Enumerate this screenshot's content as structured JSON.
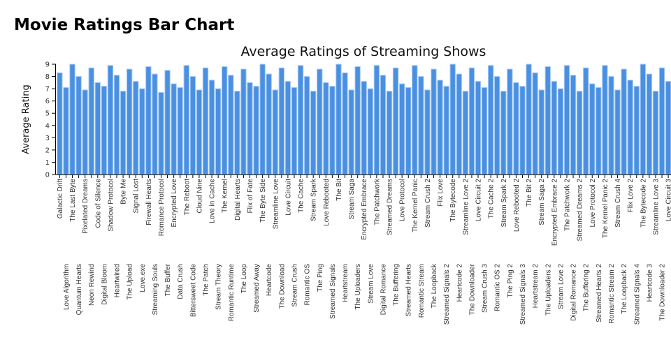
{
  "page": {
    "heading": "Movie Ratings Bar Chart"
  },
  "chart_data": {
    "type": "bar",
    "title": "Average Ratings of Streaming Shows",
    "xlabel": "",
    "ylabel": "Average Rating",
    "ylim": [
      0,
      9
    ],
    "yticks": [
      "0",
      "1",
      "2",
      "3",
      "4",
      "5",
      "6",
      "7",
      "8",
      "9"
    ],
    "grid": false,
    "bar_color": "#4a90e2",
    "categories": [
      "Galactic Drift",
      "Love Algorithm",
      "The Last Byte",
      "Quantum Hearts",
      "Pixelated Dreams",
      "Neon Rewind",
      "Code of Silence",
      "Digital Bloom",
      "Shadow Protocol",
      "Heartwired",
      "Byte Me",
      "The Upload",
      "Signal Lost",
      "Love.exe",
      "Firewall Hearts",
      "Streaming Souls",
      "Romance Protocol",
      "The Buffer",
      "Encrypted Love",
      "Data Crush",
      "The Reboot",
      "Bittersweet Code",
      "Cloud Nine",
      "The Patch",
      "Love in Cache",
      "Stream Theory",
      "The Kernel",
      "Romantic Runtime",
      "Digital Hearts",
      "The Loop",
      "Flix of Fate",
      "Streamed Away",
      "The Byte Side",
      "Heartcode",
      "Streamline Love",
      "The Download",
      "Love Circuit",
      "Stream Crush",
      "The Cache",
      "Romantic OS",
      "Stream Spark",
      "The Ping",
      "Love Rebooted",
      "Streamed Signals",
      "The Bit",
      "Heartstream",
      "Stream Saga",
      "The Uploaders",
      "Encrypted Embrace",
      "Stream Love",
      "The Patchwork",
      "Digital Romance",
      "Streamed Dreams",
      "The Buffering",
      "Love Protocol",
      "Streamed Hearts",
      "The Kernel Panic",
      "Romantic Stream",
      "Stream Crush 2",
      "The Loopback",
      "Flix Love",
      "Streamed Signals 2",
      "The Bytecode",
      "Heartcode 2",
      "Streamline Love 2",
      "The Downloader",
      "Love Circuit 2",
      "Stream Crush 3",
      "The Cache 2",
      "Romantic OS 2",
      "Stream Spark 2",
      "The Ping 2",
      "Love Rebooted 2",
      "Streamed Signals 3",
      "The Bit 2",
      "Heartstream 2",
      "Stream Saga 2",
      "The Uploaders 2",
      "Encrypted Embrace 2",
      "Stream Love 2",
      "The Patchwork 2",
      "Digital Romance 2",
      "Streamed Dreams 2",
      "The Buffering 2",
      "Love Protocol 2",
      "Streamed Hearts 2",
      "The Kernel Panic 2",
      "Romantic Stream 2",
      "Stream Crush 4",
      "The Loopback 2",
      "Flix Love 2",
      "Streamed Signals 4",
      "The Bytecode 2",
      "Heartcode 3",
      "Streamline Love 3",
      "The Downloader 2",
      "Love Circuit 3"
    ],
    "values": [
      8.3,
      7.1,
      9.0,
      8.0,
      6.9,
      8.7,
      7.5,
      7.2,
      8.9,
      8.1,
      6.8,
      8.6,
      7.6,
      7.0,
      8.8,
      8.2,
      6.7,
      8.5,
      7.4,
      7.1,
      8.9,
      8.0,
      6.9,
      8.7,
      7.7,
      7.0,
      8.8,
      8.1,
      6.8,
      8.6,
      7.5,
      7.2,
      9.0,
      8.2,
      6.9,
      8.7,
      7.6,
      7.1,
      8.9,
      8.0,
      6.8,
      8.6,
      7.5,
      7.2,
      9.0,
      8.3,
      6.9,
      8.8,
      7.6,
      7.0,
      8.9,
      8.1,
      6.8,
      8.7,
      7.4,
      7.1,
      8.9,
      8.0,
      6.9,
      8.6,
      7.7,
      7.2,
      9.0,
      8.2,
      6.8,
      8.7,
      7.6,
      7.1,
      8.9,
      8.0,
      6.8,
      8.6,
      7.5,
      7.2,
      9.0,
      8.3,
      6.9,
      8.8,
      7.6,
      7.0,
      8.9,
      8.1,
      6.8,
      8.7,
      7.4,
      7.1,
      8.9,
      8.0,
      6.9,
      8.6,
      7.7,
      7.2,
      9.0,
      8.2,
      6.8,
      8.7,
      7.6
    ]
  }
}
